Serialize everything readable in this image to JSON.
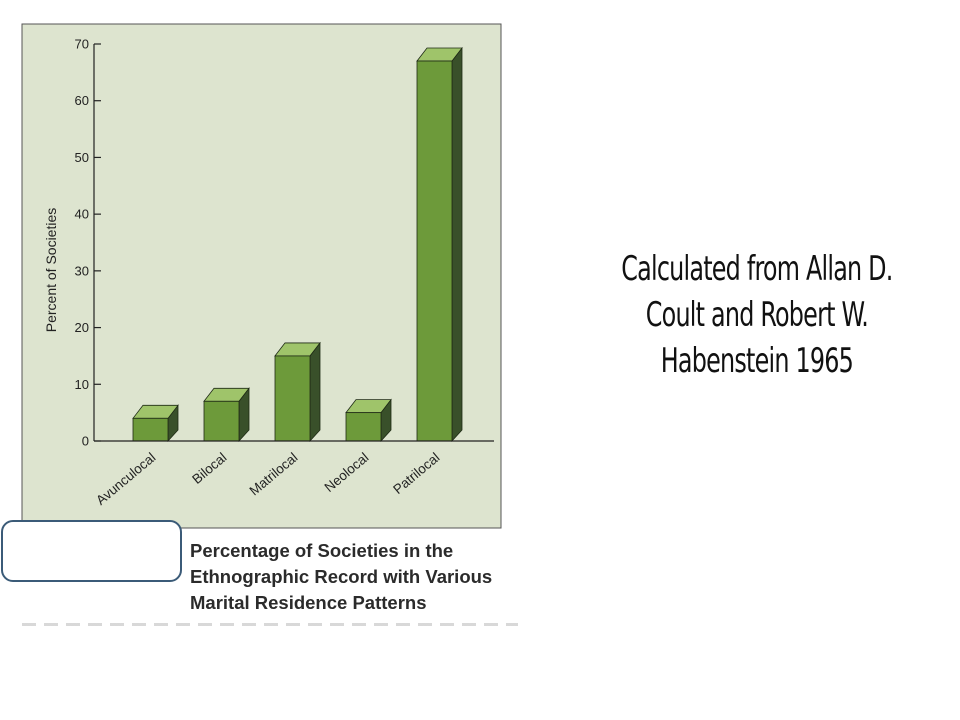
{
  "chart_data": {
    "type": "bar",
    "style": "3d",
    "categories": [
      "Avunculocal",
      "Bilocal",
      "Matrilocal",
      "Neolocal",
      "Patrilocal"
    ],
    "values": [
      4,
      7,
      15,
      5,
      67
    ],
    "ylabel": "Percent of Societies",
    "xlabel": "",
    "ylim": [
      0,
      70
    ],
    "yticks": [
      0,
      10,
      20,
      30,
      40,
      50,
      60,
      70
    ],
    "ytick_labels": [
      "0",
      "10",
      "20",
      "30",
      "40",
      "50",
      "60",
      "70"
    ],
    "grid": false,
    "legend": "none",
    "colors": {
      "panel": "#dde4cf",
      "bar_front": "#6d9a3a",
      "bar_top": "#9fc46a",
      "bar_side": "#39502a",
      "axis": "#222222"
    }
  },
  "caption": {
    "lines": [
      "Percentage of Societies in the",
      "Ethnographic Record with Various",
      "Marital Residence Patterns"
    ]
  },
  "source_note": {
    "lines": [
      "Calculated from Allan D.",
      "Coult and Robert W.",
      "Habenstein 1965"
    ]
  }
}
